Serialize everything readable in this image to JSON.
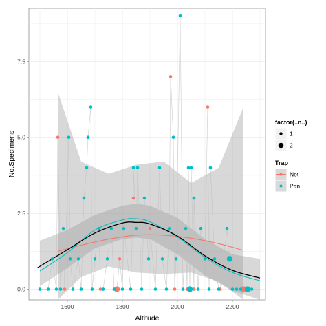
{
  "chart_data": {
    "type": "scatter",
    "title": "",
    "xlabel": "Altitude",
    "ylabel": "No.Specimens",
    "xlim": [
      1460,
      2320
    ],
    "ylim": [
      -0.35,
      9.25
    ],
    "x_ticks": [
      1600,
      1800,
      2000,
      2200
    ],
    "x_tick_labels": [
      "1600",
      "1800",
      "2000",
      "2200"
    ],
    "y_ticks": [
      0.0,
      2.5,
      5.0,
      7.5
    ],
    "y_tick_labels": [
      "0.0",
      "2.5",
      "5.0",
      "7.5"
    ],
    "grid": true,
    "legend_position": "right",
    "legends": [
      {
        "title": "factor(..n..)",
        "entries": [
          "1",
          "2"
        ]
      },
      {
        "title": "Trap",
        "entries": [
          "Net",
          "Pan"
        ]
      }
    ],
    "colors": {
      "Net": "#f8766d",
      "Pan": "#00bfc4",
      "overall": "#000000",
      "band": "#999999",
      "panel": "#ffffff",
      "grid": "#ebebeb"
    },
    "series": [
      {
        "name": "Net",
        "points": [
          {
            "x": 1565,
            "y": 5,
            "n": 1
          },
          {
            "x": 1590,
            "y": 0,
            "n": 1
          },
          {
            "x": 1720,
            "y": 0,
            "n": 1
          },
          {
            "x": 1780,
            "y": 0,
            "n": 2
          },
          {
            "x": 1790,
            "y": 1,
            "n": 1
          },
          {
            "x": 1840,
            "y": 3,
            "n": 1
          },
          {
            "x": 1900,
            "y": 2,
            "n": 1
          },
          {
            "x": 1975,
            "y": 7,
            "n": 1
          },
          {
            "x": 1990,
            "y": 0,
            "n": 1
          },
          {
            "x": 2035,
            "y": 0,
            "n": 1
          },
          {
            "x": 2060,
            "y": 0,
            "n": 1
          },
          {
            "x": 2110,
            "y": 6,
            "n": 1
          },
          {
            "x": 2155,
            "y": 0,
            "n": 1
          },
          {
            "x": 2240,
            "y": 0,
            "n": 2
          }
        ],
        "smooth": {
          "x": [
            1565,
            1650,
            1750,
            1850,
            1950,
            2050,
            2150,
            2240
          ],
          "y": [
            1.25,
            1.45,
            1.65,
            1.78,
            1.78,
            1.68,
            1.5,
            1.28
          ]
        }
      },
      {
        "name": "Pan",
        "points": [
          {
            "x": 1500,
            "y": 0,
            "n": 1
          },
          {
            "x": 1530,
            "y": 0,
            "n": 1
          },
          {
            "x": 1545,
            "y": 1,
            "n": 1
          },
          {
            "x": 1560,
            "y": 0,
            "n": 1
          },
          {
            "x": 1575,
            "y": 0,
            "n": 1
          },
          {
            "x": 1585,
            "y": 2,
            "n": 1
          },
          {
            "x": 1605,
            "y": 5,
            "n": 1
          },
          {
            "x": 1610,
            "y": 1,
            "n": 1
          },
          {
            "x": 1620,
            "y": 0,
            "n": 1
          },
          {
            "x": 1640,
            "y": 1,
            "n": 1
          },
          {
            "x": 1650,
            "y": 0,
            "n": 1
          },
          {
            "x": 1660,
            "y": 3,
            "n": 1
          },
          {
            "x": 1670,
            "y": 4,
            "n": 1
          },
          {
            "x": 1675,
            "y": 5,
            "n": 1
          },
          {
            "x": 1685,
            "y": 6,
            "n": 1
          },
          {
            "x": 1690,
            "y": 0,
            "n": 1
          },
          {
            "x": 1700,
            "y": 1,
            "n": 1
          },
          {
            "x": 1715,
            "y": 2,
            "n": 1
          },
          {
            "x": 1730,
            "y": 0,
            "n": 1
          },
          {
            "x": 1745,
            "y": 1,
            "n": 1
          },
          {
            "x": 1760,
            "y": 2,
            "n": 1
          },
          {
            "x": 1770,
            "y": 0,
            "n": 1
          },
          {
            "x": 1800,
            "y": 0,
            "n": 1
          },
          {
            "x": 1805,
            "y": 2,
            "n": 1
          },
          {
            "x": 1830,
            "y": 0,
            "n": 1
          },
          {
            "x": 1840,
            "y": 4,
            "n": 1
          },
          {
            "x": 1850,
            "y": 2,
            "n": 1
          },
          {
            "x": 1855,
            "y": 4,
            "n": 1
          },
          {
            "x": 1870,
            "y": 0,
            "n": 1
          },
          {
            "x": 1880,
            "y": 3,
            "n": 1
          },
          {
            "x": 1895,
            "y": 1,
            "n": 1
          },
          {
            "x": 1920,
            "y": 0,
            "n": 1
          },
          {
            "x": 1935,
            "y": 4,
            "n": 1
          },
          {
            "x": 1945,
            "y": 1,
            "n": 1
          },
          {
            "x": 1960,
            "y": 0,
            "n": 1
          },
          {
            "x": 1970,
            "y": 2,
            "n": 1
          },
          {
            "x": 1985,
            "y": 5,
            "n": 1
          },
          {
            "x": 1995,
            "y": 1,
            "n": 1
          },
          {
            "x": 2010,
            "y": 9,
            "n": 1
          },
          {
            "x": 2020,
            "y": 0,
            "n": 1
          },
          {
            "x": 2030,
            "y": 2,
            "n": 1
          },
          {
            "x": 2040,
            "y": 4,
            "n": 1
          },
          {
            "x": 2045,
            "y": 0,
            "n": 2
          },
          {
            "x": 2050,
            "y": 4,
            "n": 1
          },
          {
            "x": 2060,
            "y": 3,
            "n": 1
          },
          {
            "x": 2075,
            "y": 0,
            "n": 1
          },
          {
            "x": 2085,
            "y": 2,
            "n": 1
          },
          {
            "x": 2100,
            "y": 1,
            "n": 1
          },
          {
            "x": 2115,
            "y": 0,
            "n": 1
          },
          {
            "x": 2120,
            "y": 4,
            "n": 1
          },
          {
            "x": 2135,
            "y": 1,
            "n": 1
          },
          {
            "x": 2150,
            "y": 0,
            "n": 1
          },
          {
            "x": 2180,
            "y": 2,
            "n": 1
          },
          {
            "x": 2190,
            "y": 1,
            "n": 2
          },
          {
            "x": 2200,
            "y": 0,
            "n": 1
          },
          {
            "x": 2215,
            "y": 0,
            "n": 1
          },
          {
            "x": 2230,
            "y": 0,
            "n": 1
          },
          {
            "x": 2255,
            "y": 0,
            "n": 2
          },
          {
            "x": 2270,
            "y": 0,
            "n": 1
          }
        ],
        "smooth": {
          "x": [
            1500,
            1600,
            1700,
            1800,
            1850,
            1900,
            2000,
            2100,
            2200,
            2300
          ],
          "y": [
            0.6,
            1.2,
            1.95,
            2.28,
            2.32,
            2.22,
            1.72,
            1.05,
            0.55,
            0.28
          ]
        }
      }
    ],
    "bands": [
      {
        "series": "Net",
        "x": [
          1565,
          1650,
          1750,
          1850,
          1950,
          2050,
          2150,
          2240
        ],
        "lower": [
          -0.5,
          0.4,
          0.75,
          0.55,
          0.5,
          0.55,
          0.25,
          -0.35
        ],
        "upper": [
          6.5,
          4.2,
          3.8,
          4.1,
          4.2,
          3.5,
          4.0,
          6.0
        ]
      },
      {
        "series": "Pan",
        "x": [
          1500,
          1600,
          1700,
          1800,
          1850,
          1900,
          2000,
          2100,
          2200,
          2300
        ],
        "lower": [
          0.1,
          0.7,
          1.35,
          1.65,
          1.7,
          1.65,
          1.15,
          0.45,
          -0.05,
          -0.35
        ],
        "upper": [
          1.6,
          1.95,
          2.45,
          2.75,
          2.82,
          2.75,
          2.35,
          1.65,
          1.15,
          1.0
        ]
      }
    ],
    "overall_smooth": {
      "x": [
        1490,
        1600,
        1700,
        1800,
        1850,
        1900,
        2000,
        2100,
        2200,
        2300
      ],
      "y": [
        0.7,
        1.3,
        1.85,
        2.18,
        2.2,
        2.15,
        1.75,
        1.1,
        0.62,
        0.37
      ]
    }
  }
}
